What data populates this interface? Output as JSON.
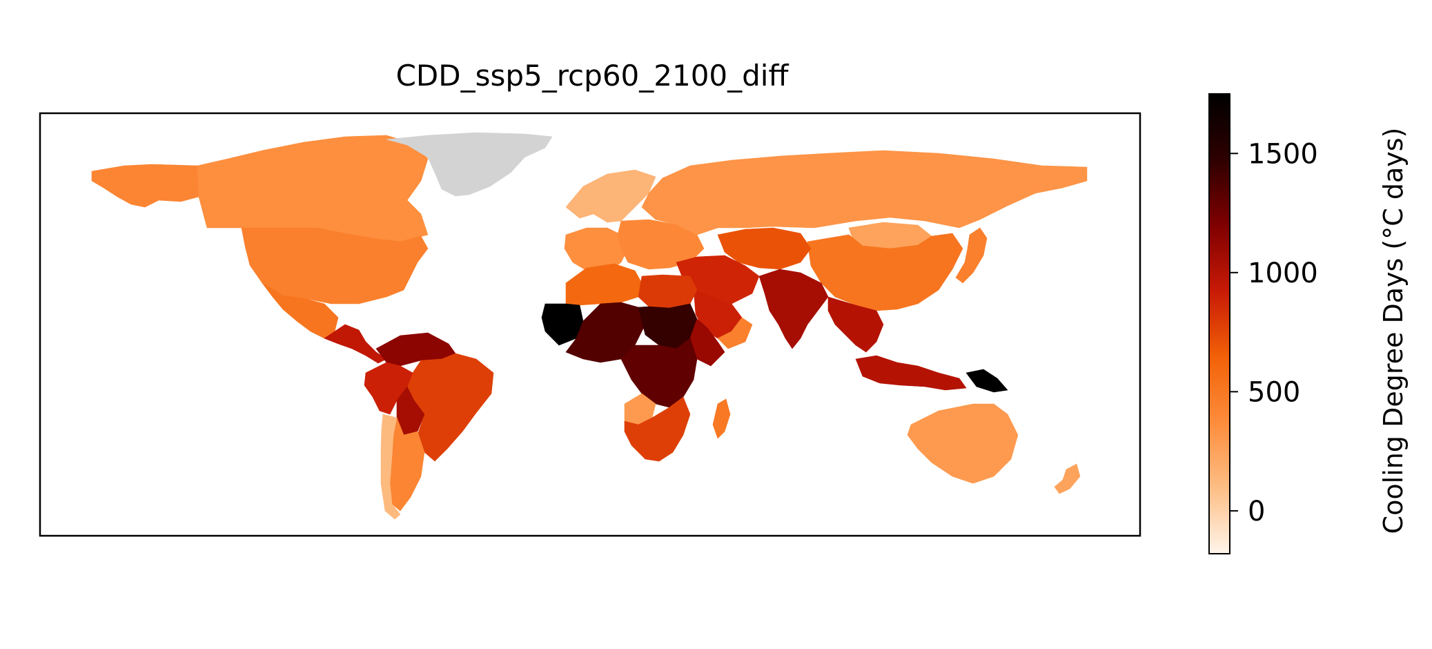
{
  "title": "CDD_ssp5_rcp60_2100_diff",
  "colorbar": {
    "label": "Cooling Degree Days (°C days)",
    "ticks": [
      {
        "value": 0,
        "label": "0"
      },
      {
        "value": 500,
        "label": "500"
      },
      {
        "value": 1000,
        "label": "1000"
      },
      {
        "value": 1500,
        "label": "1500"
      }
    ],
    "range": [
      -180,
      1750
    ],
    "colormap": [
      "#fff5eb",
      "#fdbe85",
      "#fd8d3c",
      "#f26107",
      "#c81a06",
      "#7f0000",
      "#2e0000",
      "#000000"
    ]
  },
  "colors": {
    "no_data": "#d3d3d3",
    "frame": "#000000",
    "background": "#ffffff"
  },
  "regions": [
    {
      "name": "Alaska",
      "value": 420
    },
    {
      "name": "Canada",
      "value": 360
    },
    {
      "name": "Greenland",
      "value": null
    },
    {
      "name": "United States",
      "value": 450
    },
    {
      "name": "Mexico",
      "value": 520
    },
    {
      "name": "Central America",
      "value": 950
    },
    {
      "name": "Venezuela / Colombia",
      "value": 1150
    },
    {
      "name": "Peru",
      "value": 900
    },
    {
      "name": "Brazil",
      "value": 780
    },
    {
      "name": "Bolivia",
      "value": 1050
    },
    {
      "name": "Argentina",
      "value": 420
    },
    {
      "name": "Chile",
      "value": 120
    },
    {
      "name": "Scandinavia",
      "value": 150
    },
    {
      "name": "Western Europe",
      "value": 360
    },
    {
      "name": "Eastern Europe",
      "value": 400
    },
    {
      "name": "Russia",
      "value": 330
    },
    {
      "name": "Mongolia",
      "value": 250
    },
    {
      "name": "China",
      "value": 520
    },
    {
      "name": "Japan",
      "value": 450
    },
    {
      "name": "Middle East",
      "value": 880
    },
    {
      "name": "Arabian Peninsula",
      "value": 900
    },
    {
      "name": "Yemen / Oman",
      "value": 450
    },
    {
      "name": "Central Asia",
      "value": 700
    },
    {
      "name": "India",
      "value": 1050
    },
    {
      "name": "Southeast Asia",
      "value": 1000
    },
    {
      "name": "North Africa",
      "value": 600
    },
    {
      "name": "Libya / Egypt",
      "value": 800
    },
    {
      "name": "West Africa",
      "value": 1350
    },
    {
      "name": "Mauritania",
      "value": 1750
    },
    {
      "name": "Sudan / Chad",
      "value": 1450
    },
    {
      "name": "Ethiopia / Somalia",
      "value": 1100
    },
    {
      "name": "Central Africa",
      "value": 1300
    },
    {
      "name": "Angola",
      "value": 300
    },
    {
      "name": "Southern Africa",
      "value": 780
    },
    {
      "name": "Madagascar",
      "value": 500
    },
    {
      "name": "Indonesia",
      "value": 1000
    },
    {
      "name": "Papua New Guinea",
      "value": 1750
    },
    {
      "name": "Australia",
      "value": 300
    },
    {
      "name": "New Zealand",
      "value": 250
    }
  ]
}
